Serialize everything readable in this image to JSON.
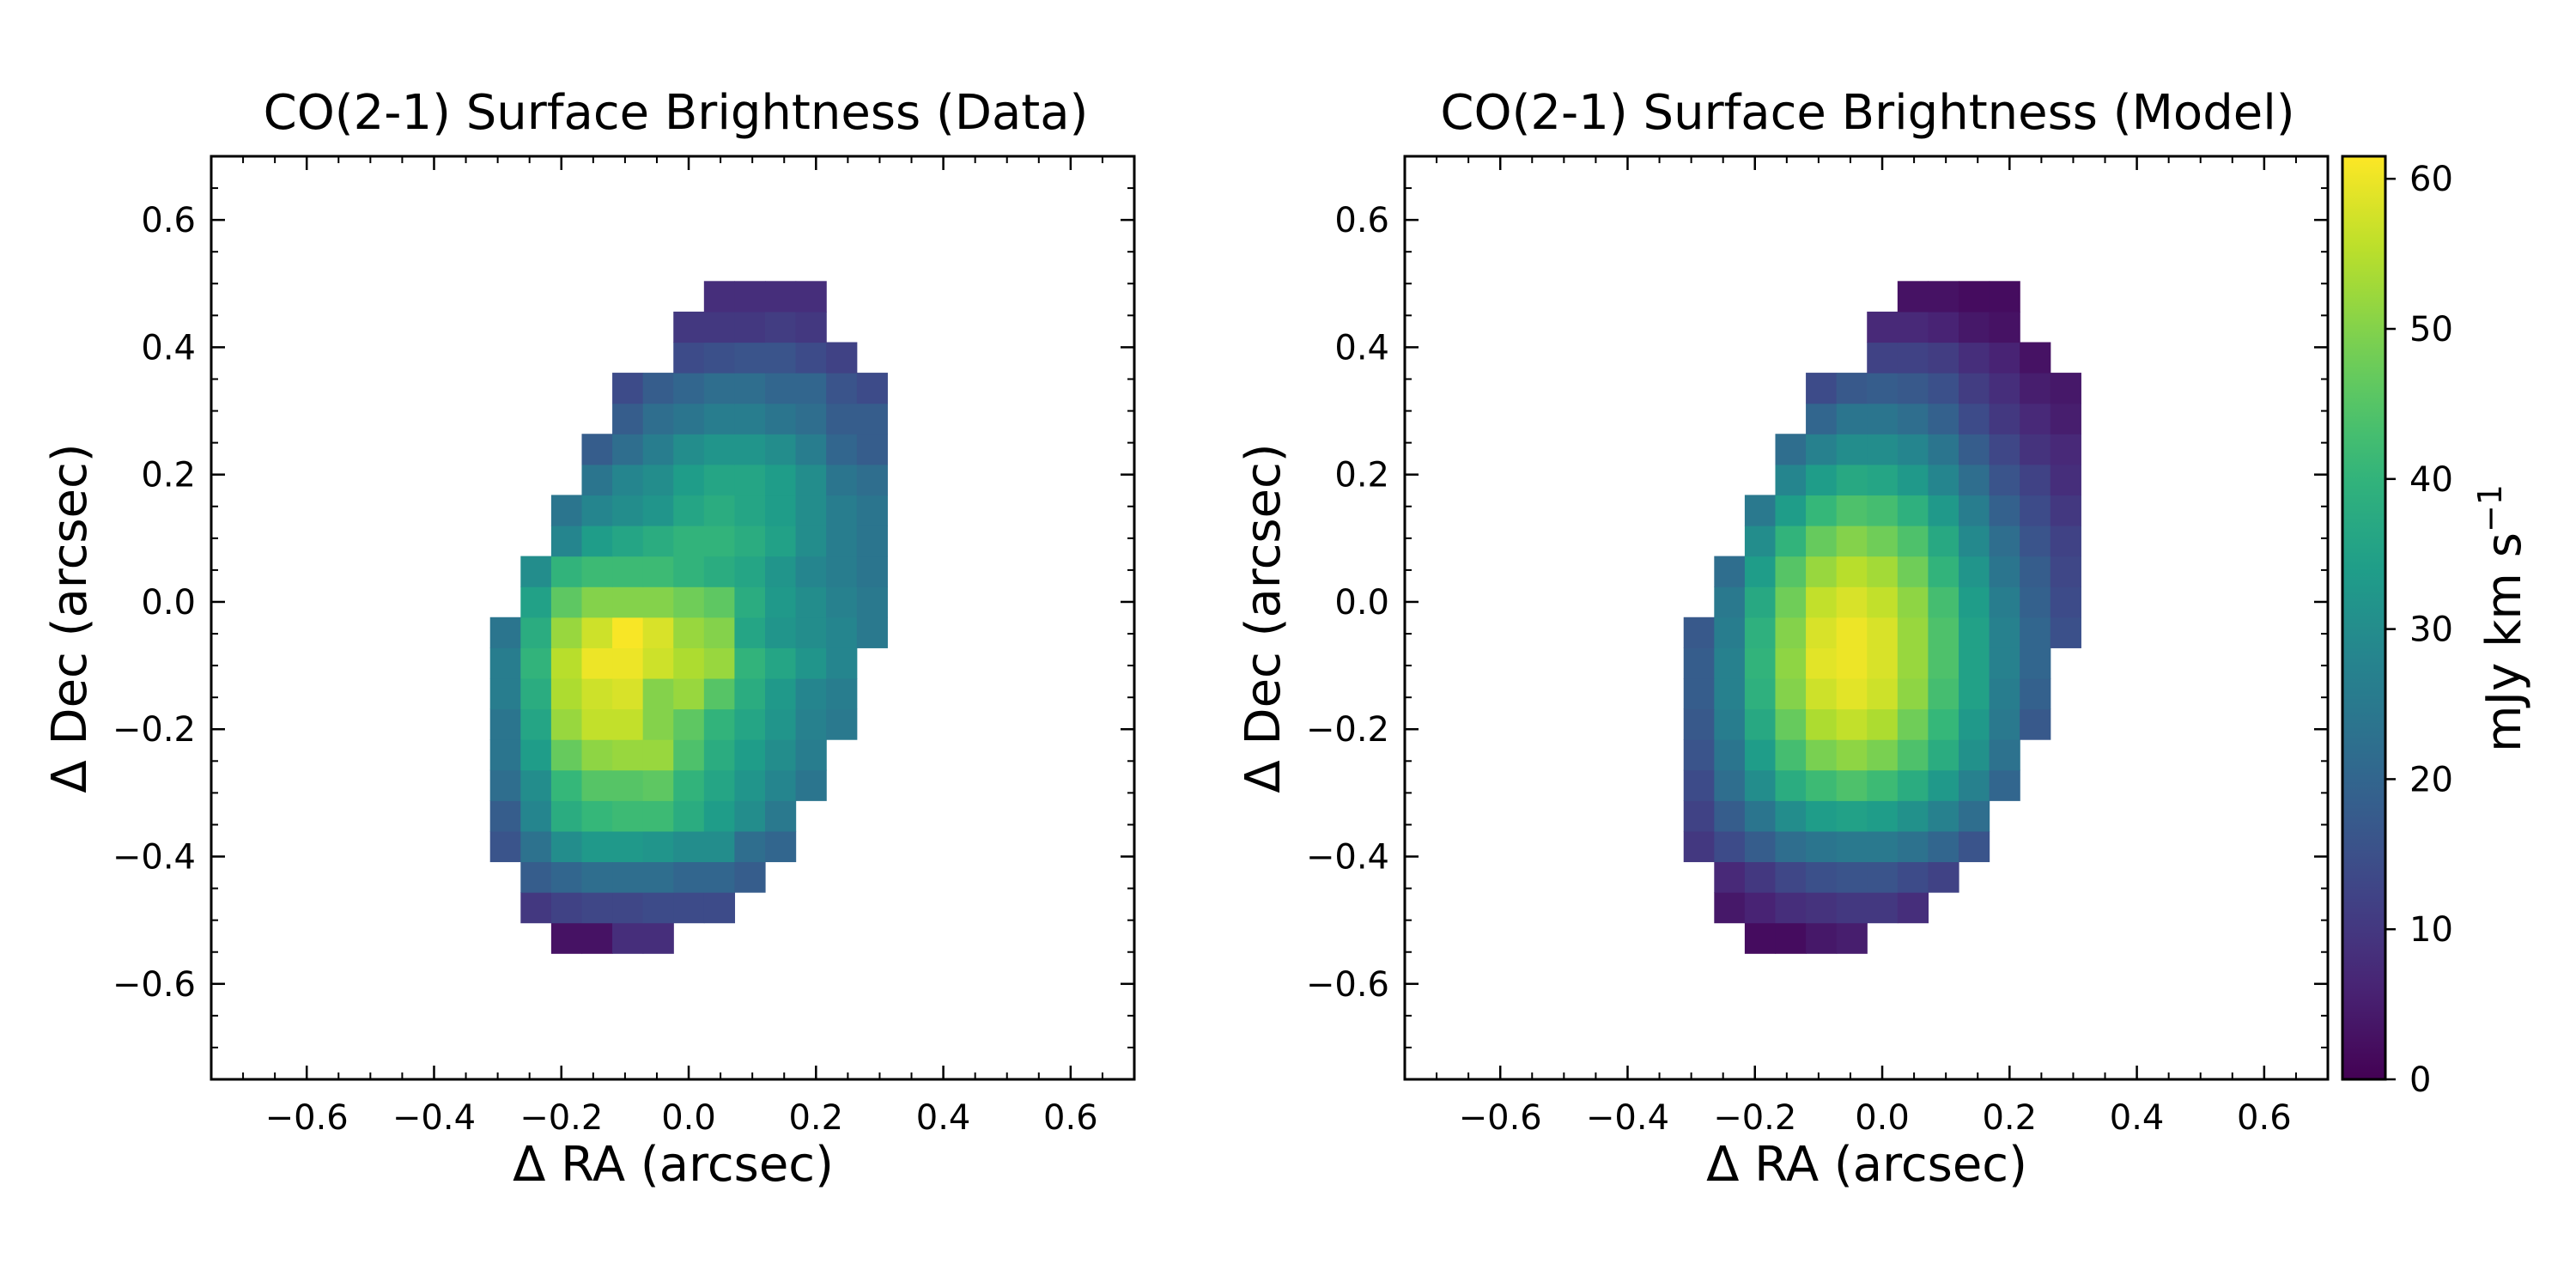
{
  "colorbar": {
    "label_main": "mJy km s",
    "label_exp": "−1",
    "ticks": [
      0,
      10,
      20,
      30,
      40,
      50,
      60
    ],
    "range": [
      0,
      61.5
    ],
    "colormap": "viridis"
  },
  "chart_data": [
    {
      "type": "heatmap",
      "title": "CO(2-1) Surface Brightness (Data)",
      "xlabel": "Δ RA (arcsec)",
      "ylabel": "Δ Dec (arcsec)",
      "xlim": [
        -0.75,
        0.7
      ],
      "ylim": [
        -0.75,
        0.7
      ],
      "xticks": [
        -0.6,
        -0.4,
        -0.2,
        0.0,
        0.2,
        0.4,
        0.6
      ],
      "yticks": [
        -0.6,
        -0.4,
        -0.2,
        0.0,
        0.2,
        0.4,
        0.6
      ],
      "pixel_size_arcsec": 0.048,
      "x0": -0.312,
      "y0": -0.552,
      "grid": false,
      "values": [
        [
          null,
          null,
          3,
          3,
          8,
          8,
          null,
          null,
          null,
          null,
          null,
          null,
          null
        ],
        [
          null,
          10,
          12,
          13,
          13,
          14,
          14,
          14,
          null,
          null,
          null,
          null,
          null
        ],
        [
          null,
          18,
          20,
          22,
          22,
          22,
          20,
          20,
          18,
          null,
          null,
          null,
          null
        ],
        [
          16,
          23,
          30,
          33,
          33,
          32,
          30,
          30,
          22,
          20,
          null,
          null,
          null
        ],
        [
          18,
          28,
          38,
          41,
          42,
          42,
          38,
          34,
          30,
          25,
          null,
          null,
          null
        ],
        [
          22,
          30,
          41,
          45,
          45,
          46,
          40,
          36,
          32,
          28,
          24,
          null,
          null
        ],
        [
          24,
          34,
          47,
          51,
          52,
          52,
          44,
          38,
          34,
          30,
          26,
          null,
          null
        ],
        [
          24,
          36,
          52,
          56,
          56,
          50,
          46,
          40,
          36,
          32,
          27,
          25,
          null
        ],
        [
          26,
          38,
          54,
          57,
          58,
          50,
          52,
          45,
          38,
          33,
          28,
          26,
          null
        ],
        [
          26,
          40,
          55,
          60,
          60,
          57,
          54,
          52,
          40,
          36,
          32,
          28,
          null
        ],
        [
          24,
          38,
          52,
          57,
          61,
          58,
          52,
          50,
          36,
          32,
          30,
          28,
          25
        ],
        [
          null,
          35,
          46,
          50,
          50,
          50,
          48,
          46,
          38,
          33,
          30,
          27,
          25
        ],
        [
          null,
          30,
          40,
          42,
          42,
          42,
          40,
          38,
          36,
          32,
          28,
          26,
          24
        ],
        [
          null,
          null,
          28,
          34,
          36,
          38,
          40,
          40,
          38,
          35,
          30,
          26,
          24
        ],
        [
          null,
          null,
          24,
          28,
          30,
          32,
          36,
          38,
          36,
          34,
          30,
          26,
          24
        ],
        [
          null,
          null,
          null,
          24,
          28,
          30,
          34,
          36,
          36,
          34,
          30,
          24,
          22
        ],
        [
          null,
          null,
          null,
          18,
          22,
          26,
          30,
          32,
          32,
          30,
          26,
          20,
          18
        ],
        [
          null,
          null,
          null,
          null,
          18,
          22,
          24,
          26,
          26,
          24,
          22,
          18,
          18
        ],
        [
          null,
          null,
          null,
          null,
          14,
          18,
          20,
          22,
          22,
          20,
          20,
          16,
          14
        ],
        [
          null,
          null,
          null,
          null,
          null,
          null,
          14,
          15,
          16,
          16,
          14,
          12,
          null
        ],
        [
          null,
          null,
          null,
          null,
          null,
          null,
          10,
          10,
          10,
          11,
          10,
          null,
          null
        ],
        [
          null,
          null,
          null,
          null,
          null,
          null,
          null,
          8,
          8,
          8,
          8,
          null,
          null
        ]
      ]
    },
    {
      "type": "heatmap",
      "title": "CO(2-1) Surface Brightness (Model)",
      "xlabel": "Δ RA (arcsec)",
      "ylabel": "Δ Dec (arcsec)",
      "xlim": [
        -0.75,
        0.7
      ],
      "ylim": [
        -0.75,
        0.7
      ],
      "xticks": [
        -0.6,
        -0.4,
        -0.2,
        0.0,
        0.2,
        0.4,
        0.6
      ],
      "yticks": [
        -0.6,
        -0.4,
        -0.2,
        0.0,
        0.2,
        0.4,
        0.6
      ],
      "pixel_size_arcsec": 0.048,
      "x0": -0.312,
      "y0": -0.552,
      "grid": false,
      "values": [
        [
          null,
          null,
          2,
          2,
          4,
          5,
          null,
          null,
          null,
          null,
          null,
          null,
          null
        ],
        [
          null,
          4,
          6,
          8,
          9,
          10,
          10,
          8,
          null,
          null,
          null,
          null,
          null
        ],
        [
          null,
          7,
          10,
          13,
          15,
          16,
          16,
          14,
          12,
          null,
          null,
          null,
          null
        ],
        [
          10,
          14,
          18,
          22,
          24,
          25,
          25,
          23,
          20,
          16,
          null,
          null,
          null
        ],
        [
          12,
          18,
          24,
          30,
          34,
          35,
          34,
          31,
          27,
          22,
          null,
          null,
          null
        ],
        [
          14,
          22,
          30,
          38,
          42,
          44,
          42,
          38,
          33,
          27,
          20,
          null,
          null
        ],
        [
          16,
          24,
          34,
          43,
          49,
          51,
          49,
          44,
          38,
          31,
          23,
          null,
          null
        ],
        [
          17,
          26,
          37,
          47,
          54,
          56,
          54,
          48,
          41,
          33,
          25,
          17,
          null
        ],
        [
          18,
          27,
          39,
          50,
          57,
          59,
          57,
          51,
          43,
          35,
          26,
          19,
          null
        ],
        [
          18,
          27,
          40,
          51,
          59,
          60,
          58,
          52,
          44,
          35,
          27,
          20,
          null
        ],
        [
          17,
          26,
          39,
          50,
          58,
          60,
          58,
          52,
          44,
          35,
          27,
          20,
          15
        ],
        [
          null,
          25,
          37,
          48,
          56,
          58,
          56,
          51,
          43,
          34,
          26,
          19,
          14
        ],
        [
          null,
          22,
          34,
          45,
          52,
          55,
          53,
          48,
          40,
          32,
          24,
          18,
          13
        ],
        [
          null,
          null,
          30,
          40,
          47,
          50,
          48,
          44,
          37,
          29,
          22,
          16,
          12
        ],
        [
          null,
          null,
          25,
          34,
          41,
          44,
          43,
          39,
          33,
          26,
          19,
          14,
          10
        ],
        [
          null,
          null,
          null,
          28,
          34,
          37,
          36,
          33,
          28,
          22,
          16,
          12,
          8
        ],
        [
          null,
          null,
          null,
          22,
          27,
          30,
          30,
          28,
          24,
          18,
          13,
          9,
          7
        ],
        [
          null,
          null,
          null,
          null,
          20,
          24,
          24,
          22,
          19,
          14,
          10,
          7,
          5
        ],
        [
          null,
          null,
          null,
          null,
          14,
          17,
          18,
          17,
          15,
          11,
          8,
          5,
          4
        ],
        [
          null,
          null,
          null,
          null,
          null,
          null,
          12,
          12,
          11,
          8,
          6,
          3,
          null
        ],
        [
          null,
          null,
          null,
          null,
          null,
          null,
          7,
          7,
          6,
          4,
          3,
          null,
          null
        ],
        [
          null,
          null,
          null,
          null,
          null,
          null,
          null,
          3,
          3,
          2,
          2,
          null,
          null
        ]
      ]
    }
  ]
}
